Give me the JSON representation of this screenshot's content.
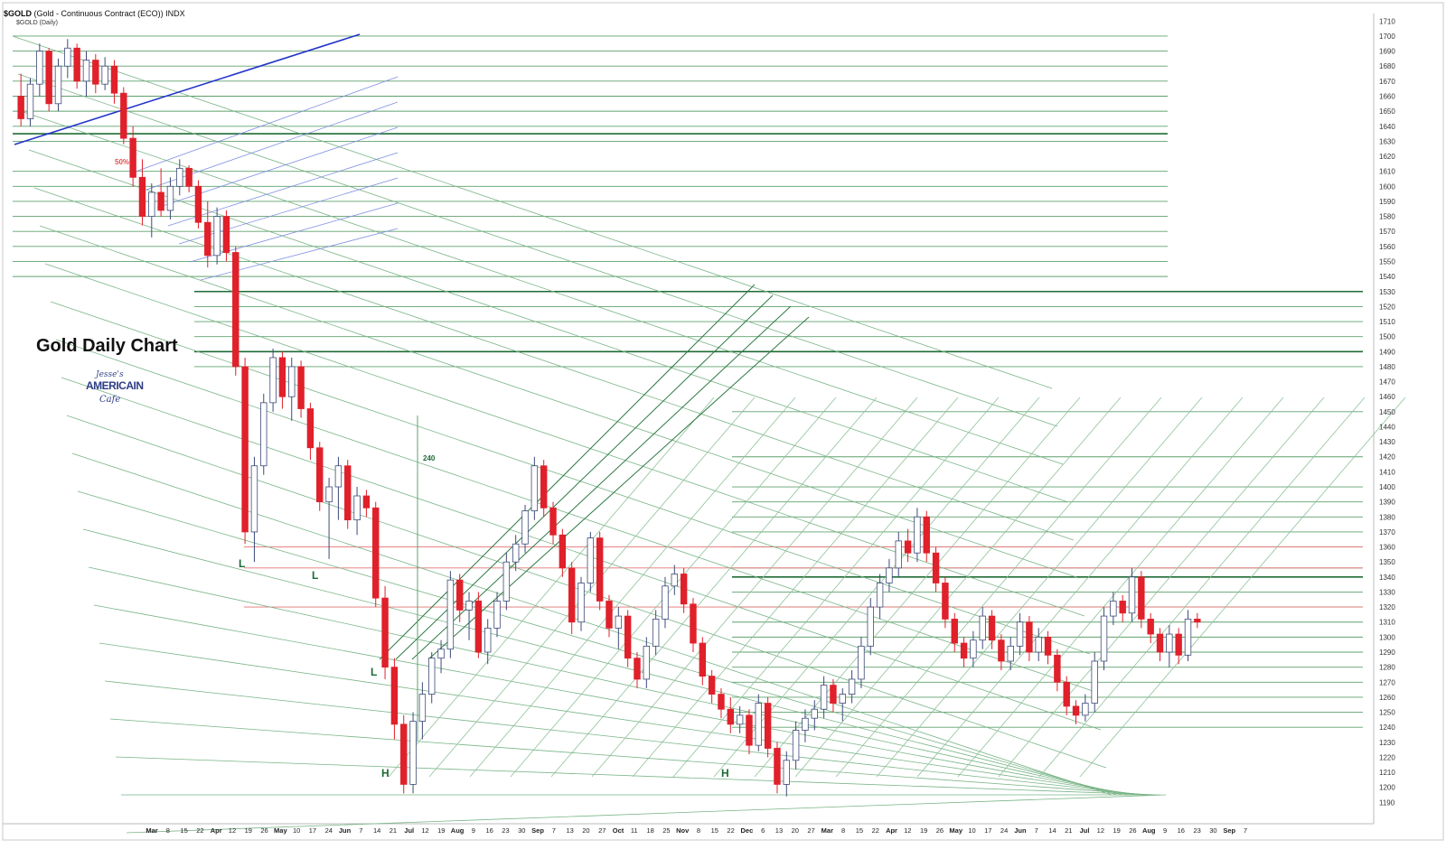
{
  "header": {
    "symbol": "$GOLD",
    "description": "(Gold - Continuous Contract (ECO)) INDX",
    "subtitle": "$GOLD (Daily)"
  },
  "annotation_title": "Gold Daily Chart",
  "logo": {
    "line1": "Jesse's",
    "line2": "AMERICAIN",
    "line3": "Cafe"
  },
  "chart_data": {
    "type": "candlestick",
    "title": "Gold Daily Chart",
    "ylim": [
      1180,
      1715
    ],
    "y_ticks": [
      1190,
      1200,
      1210,
      1220,
      1230,
      1240,
      1250,
      1260,
      1270,
      1280,
      1290,
      1300,
      1310,
      1320,
      1330,
      1340,
      1350,
      1360,
      1370,
      1380,
      1390,
      1400,
      1410,
      1420,
      1430,
      1440,
      1450,
      1460,
      1470,
      1480,
      1490,
      1500,
      1510,
      1520,
      1530,
      1540,
      1550,
      1560,
      1570,
      1580,
      1590,
      1600,
      1610,
      1620,
      1630,
      1640,
      1650,
      1660,
      1670,
      1680,
      1690,
      1700,
      1710
    ],
    "x_ticks": [
      "Mar",
      "8",
      "15",
      "22",
      "Apr",
      "12",
      "19",
      "26",
      "May",
      "10",
      "17",
      "24",
      "Jun",
      "7",
      "14",
      "21",
      "Jul",
      "12",
      "19",
      "Aug",
      "9",
      "16",
      "23",
      "30",
      "Sep",
      "7",
      "13",
      "20",
      "27",
      "Oct",
      "11",
      "18",
      "25",
      "Nov",
      "8",
      "15",
      "22",
      "Dec",
      "6",
      "13",
      "20",
      "27",
      "Mar",
      "8",
      "15",
      "22",
      "Apr",
      "12",
      "19",
      "26",
      "May",
      "10",
      "17",
      "24",
      "Jun",
      "7",
      "14",
      "21",
      "Jul",
      "12",
      "19",
      "26",
      "Aug",
      "9",
      "16",
      "23",
      "30",
      "Sep",
      "7"
    ],
    "series": [
      {
        "values": [
          [
            1660,
            1675,
            1640,
            1645
          ],
          [
            1645,
            1672,
            1640,
            1668
          ],
          [
            1668,
            1695,
            1660,
            1690
          ],
          [
            1690,
            1692,
            1650,
            1655
          ],
          [
            1655,
            1685,
            1650,
            1680
          ],
          [
            1680,
            1698,
            1672,
            1692
          ],
          [
            1692,
            1695,
            1665,
            1670
          ],
          [
            1670,
            1690,
            1660,
            1684
          ],
          [
            1684,
            1688,
            1662,
            1668
          ],
          [
            1668,
            1686,
            1664,
            1680
          ],
          [
            1680,
            1684,
            1655,
            1662
          ],
          [
            1662,
            1666,
            1628,
            1632
          ],
          [
            1632,
            1640,
            1600,
            1606
          ],
          [
            1606,
            1618,
            1574,
            1580
          ],
          [
            1580,
            1602,
            1566,
            1596
          ],
          [
            1596,
            1612,
            1580,
            1584
          ],
          [
            1584,
            1606,
            1578,
            1600
          ],
          [
            1600,
            1618,
            1594,
            1612
          ],
          [
            1612,
            1614,
            1596,
            1600
          ],
          [
            1600,
            1604,
            1572,
            1576
          ],
          [
            1576,
            1590,
            1546,
            1554
          ],
          [
            1554,
            1586,
            1548,
            1580
          ],
          [
            1580,
            1584,
            1550,
            1556
          ],
          [
            1556,
            1560,
            1474,
            1480
          ],
          [
            1480,
            1486,
            1362,
            1370
          ],
          [
            1370,
            1420,
            1350,
            1414
          ],
          [
            1414,
            1462,
            1408,
            1456
          ],
          [
            1456,
            1492,
            1450,
            1486
          ],
          [
            1486,
            1490,
            1452,
            1460
          ],
          [
            1460,
            1486,
            1444,
            1480
          ],
          [
            1480,
            1484,
            1446,
            1452
          ],
          [
            1452,
            1456,
            1418,
            1426
          ],
          [
            1426,
            1430,
            1384,
            1390
          ],
          [
            1390,
            1406,
            1352,
            1400
          ],
          [
            1400,
            1420,
            1378,
            1414
          ],
          [
            1414,
            1418,
            1372,
            1378
          ],
          [
            1378,
            1400,
            1368,
            1394
          ],
          [
            1394,
            1398,
            1380,
            1386
          ],
          [
            1386,
            1390,
            1320,
            1326
          ],
          [
            1326,
            1334,
            1272,
            1280
          ],
          [
            1280,
            1286,
            1232,
            1242
          ],
          [
            1242,
            1248,
            1196,
            1202
          ],
          [
            1202,
            1250,
            1196,
            1244
          ],
          [
            1244,
            1270,
            1232,
            1262
          ],
          [
            1262,
            1290,
            1256,
            1286
          ],
          [
            1286,
            1298,
            1276,
            1292
          ],
          [
            1292,
            1344,
            1286,
            1338
          ],
          [
            1338,
            1342,
            1310,
            1318
          ],
          [
            1318,
            1330,
            1298,
            1324
          ],
          [
            1324,
            1330,
            1286,
            1290
          ],
          [
            1290,
            1312,
            1282,
            1306
          ],
          [
            1306,
            1330,
            1300,
            1324
          ],
          [
            1324,
            1356,
            1318,
            1350
          ],
          [
            1350,
            1368,
            1344,
            1362
          ],
          [
            1362,
            1388,
            1356,
            1384
          ],
          [
            1384,
            1420,
            1378,
            1414
          ],
          [
            1414,
            1418,
            1380,
            1386
          ],
          [
            1386,
            1390,
            1362,
            1368
          ],
          [
            1368,
            1372,
            1340,
            1346
          ],
          [
            1346,
            1350,
            1302,
            1310
          ],
          [
            1310,
            1340,
            1304,
            1336
          ],
          [
            1336,
            1370,
            1330,
            1366
          ],
          [
            1366,
            1370,
            1318,
            1324
          ],
          [
            1324,
            1328,
            1300,
            1306
          ],
          [
            1306,
            1320,
            1292,
            1314
          ],
          [
            1314,
            1318,
            1280,
            1286
          ],
          [
            1286,
            1290,
            1266,
            1272
          ],
          [
            1272,
            1300,
            1266,
            1294
          ],
          [
            1294,
            1318,
            1288,
            1312
          ],
          [
            1312,
            1340,
            1306,
            1334
          ],
          [
            1334,
            1348,
            1328,
            1342
          ],
          [
            1342,
            1346,
            1316,
            1322
          ],
          [
            1322,
            1326,
            1290,
            1296
          ],
          [
            1296,
            1300,
            1268,
            1274
          ],
          [
            1274,
            1278,
            1256,
            1262
          ],
          [
            1262,
            1266,
            1246,
            1252
          ],
          [
            1252,
            1260,
            1236,
            1242
          ],
          [
            1242,
            1254,
            1236,
            1248
          ],
          [
            1248,
            1252,
            1222,
            1228
          ],
          [
            1228,
            1262,
            1224,
            1256
          ],
          [
            1256,
            1260,
            1220,
            1226
          ],
          [
            1226,
            1230,
            1196,
            1202
          ],
          [
            1202,
            1224,
            1194,
            1218
          ],
          [
            1218,
            1244,
            1212,
            1238
          ],
          [
            1238,
            1252,
            1230,
            1246
          ],
          [
            1246,
            1258,
            1238,
            1252
          ],
          [
            1252,
            1274,
            1246,
            1268
          ],
          [
            1268,
            1272,
            1250,
            1256
          ],
          [
            1256,
            1266,
            1244,
            1262
          ],
          [
            1262,
            1278,
            1256,
            1272
          ],
          [
            1272,
            1300,
            1266,
            1294
          ],
          [
            1294,
            1326,
            1288,
            1320
          ],
          [
            1320,
            1342,
            1312,
            1336
          ],
          [
            1336,
            1352,
            1330,
            1346
          ],
          [
            1346,
            1370,
            1340,
            1364
          ],
          [
            1364,
            1372,
            1350,
            1356
          ],
          [
            1356,
            1386,
            1350,
            1380
          ],
          [
            1380,
            1384,
            1350,
            1356
          ],
          [
            1356,
            1360,
            1330,
            1336
          ],
          [
            1336,
            1340,
            1306,
            1312
          ],
          [
            1312,
            1316,
            1290,
            1296
          ],
          [
            1296,
            1300,
            1280,
            1286
          ],
          [
            1286,
            1304,
            1280,
            1298
          ],
          [
            1298,
            1320,
            1292,
            1314
          ],
          [
            1314,
            1318,
            1292,
            1298
          ],
          [
            1298,
            1302,
            1278,
            1284
          ],
          [
            1284,
            1300,
            1278,
            1294
          ],
          [
            1294,
            1316,
            1288,
            1310
          ],
          [
            1310,
            1314,
            1284,
            1290
          ],
          [
            1290,
            1306,
            1284,
            1300
          ],
          [
            1300,
            1304,
            1282,
            1288
          ],
          [
            1288,
            1292,
            1264,
            1270
          ],
          [
            1270,
            1274,
            1248,
            1254
          ],
          [
            1254,
            1258,
            1242,
            1248
          ],
          [
            1248,
            1262,
            1244,
            1256
          ],
          [
            1256,
            1290,
            1250,
            1284
          ],
          [
            1284,
            1320,
            1278,
            1314
          ],
          [
            1314,
            1330,
            1308,
            1324
          ],
          [
            1324,
            1328,
            1310,
            1316
          ],
          [
            1316,
            1346,
            1310,
            1340
          ],
          [
            1340,
            1344,
            1306,
            1312
          ],
          [
            1312,
            1316,
            1296,
            1302
          ],
          [
            1302,
            1306,
            1284,
            1290
          ],
          [
            1290,
            1308,
            1280,
            1302
          ],
          [
            1302,
            1306,
            1282,
            1288
          ],
          [
            1288,
            1318,
            1284,
            1312
          ],
          [
            1312,
            1316,
            1306,
            1310
          ]
        ]
      }
    ],
    "labels": [
      {
        "text": "L",
        "x": 12,
        "y": 1338
      },
      {
        "text": "L",
        "x": 17,
        "y": 1330
      },
      {
        "text": "L",
        "x": 24,
        "y": 1266
      },
      {
        "text": "H",
        "x": 25,
        "y": 1196
      },
      {
        "text": "H",
        "x": 50,
        "y": 1196
      },
      {
        "text": "240",
        "x": 28,
        "y": 1408
      },
      {
        "text": "50%",
        "x": 7,
        "y": 1617
      }
    ],
    "horizontal_levels": [
      1700,
      1690,
      1680,
      1670,
      1660,
      1650,
      1640,
      1635,
      1630,
      1610,
      1600,
      1590,
      1580,
      1570,
      1560,
      1550,
      1540,
      1530,
      1520,
      1510,
      1500,
      1490,
      1480,
      1450,
      1420,
      1400,
      1390,
      1380,
      1370,
      1360,
      1346,
      1340,
      1330,
      1320,
      1310,
      1300,
      1290,
      1280,
      1270,
      1260,
      1250,
      1240
    ],
    "red_levels": [
      1360,
      1346,
      1320
    ],
    "grid": false,
    "legend": "none"
  }
}
